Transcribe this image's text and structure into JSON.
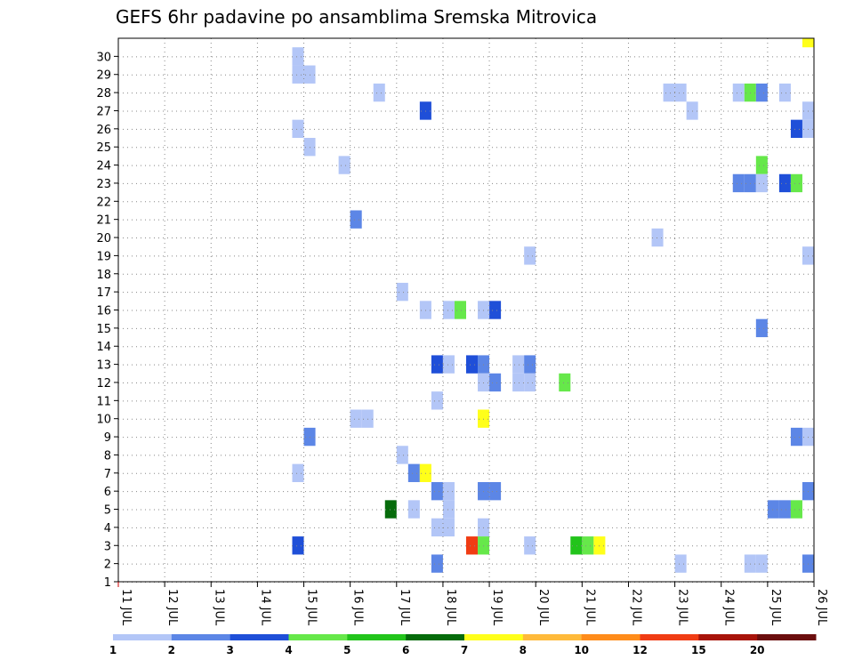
{
  "chart_data": {
    "type": "heatmap",
    "title": "GEFS 6hr padavine po ansamblima Sremska Mitrovica",
    "xlabel": "",
    "ylabel": "",
    "x_ticks": [
      "11 JUL",
      "12 JUL",
      "13 JUL",
      "14 JUL",
      "15 JUL",
      "16 JUL",
      "17 JUL",
      "18 JUL",
      "19 JUL",
      "20 JUL",
      "21 JUL",
      "22 JUL",
      "23 JUL",
      "24 JUL",
      "25 JUL",
      "26 JUL"
    ],
    "xlim": [
      11,
      26
    ],
    "ylim": [
      0,
      30
    ],
    "y_ticks": [
      1,
      2,
      3,
      4,
      5,
      6,
      7,
      8,
      9,
      10,
      11,
      12,
      13,
      14,
      15,
      16,
      17,
      18,
      19,
      20,
      21,
      22,
      23,
      24,
      25,
      26,
      27,
      28,
      29,
      30
    ],
    "grid": true,
    "legend_placement": "bottom",
    "colorbar": {
      "labels": [
        "1",
        "2",
        "3",
        "4",
        "5",
        "6",
        "7",
        "8",
        "10",
        "12",
        "15",
        "20"
      ],
      "colors": [
        "#b3c6f7",
        "#5c86e6",
        "#1f4fd8",
        "#66e84a",
        "#22c41b",
        "#066b0b",
        "#ffff1a",
        "#ffba3a",
        "#ff8c1a",
        "#f03c14",
        "#a8140a",
        "#6b0e0e"
      ]
    },
    "cell_width_days": 0.25,
    "cells": [
      {
        "x": 14.875,
        "y": 30,
        "c": 0
      },
      {
        "x": 14.875,
        "y": 29,
        "c": 0
      },
      {
        "x": 15.125,
        "y": 29,
        "c": 0
      },
      {
        "x": 16.625,
        "y": 28,
        "c": 0
      },
      {
        "x": 22.875,
        "y": 28,
        "c": 0
      },
      {
        "x": 23.125,
        "y": 28,
        "c": 0
      },
      {
        "x": 24.375,
        "y": 28,
        "c": 0
      },
      {
        "x": 24.625,
        "y": 28,
        "c": 3
      },
      {
        "x": 24.875,
        "y": 28,
        "c": 1
      },
      {
        "x": 25.375,
        "y": 28,
        "c": 0
      },
      {
        "x": 17.625,
        "y": 27,
        "c": 2
      },
      {
        "x": 23.375,
        "y": 27,
        "c": 0
      },
      {
        "x": 25.875,
        "y": 27,
        "c": 0
      },
      {
        "x": 14.875,
        "y": 26,
        "c": 0
      },
      {
        "x": 25.625,
        "y": 26,
        "c": 2
      },
      {
        "x": 25.875,
        "y": 26,
        "c": 0
      },
      {
        "x": 15.125,
        "y": 25,
        "c": 0
      },
      {
        "x": 15.875,
        "y": 24,
        "c": 0
      },
      {
        "x": 24.875,
        "y": 24,
        "c": 3
      },
      {
        "x": 24.375,
        "y": 23,
        "c": 1
      },
      {
        "x": 24.625,
        "y": 23,
        "c": 1
      },
      {
        "x": 24.875,
        "y": 23,
        "c": 0
      },
      {
        "x": 25.375,
        "y": 23,
        "c": 2
      },
      {
        "x": 25.625,
        "y": 23,
        "c": 3
      },
      {
        "x": 16.125,
        "y": 21,
        "c": 1
      },
      {
        "x": 22.625,
        "y": 20,
        "c": 0
      },
      {
        "x": 19.875,
        "y": 19,
        "c": 0
      },
      {
        "x": 25.875,
        "y": 19,
        "c": 0
      },
      {
        "x": 17.125,
        "y": 17,
        "c": 0
      },
      {
        "x": 17.625,
        "y": 16,
        "c": 0
      },
      {
        "x": 18.125,
        "y": 16,
        "c": 0
      },
      {
        "x": 18.375,
        "y": 16,
        "c": 3
      },
      {
        "x": 18.875,
        "y": 16,
        "c": 0
      },
      {
        "x": 19.125,
        "y": 16,
        "c": 2
      },
      {
        "x": 24.875,
        "y": 15,
        "c": 1
      },
      {
        "x": 17.875,
        "y": 13,
        "c": 2
      },
      {
        "x": 18.125,
        "y": 13,
        "c": 0
      },
      {
        "x": 18.625,
        "y": 13,
        "c": 2
      },
      {
        "x": 18.875,
        "y": 13,
        "c": 1
      },
      {
        "x": 19.625,
        "y": 13,
        "c": 0
      },
      {
        "x": 19.875,
        "y": 13,
        "c": 1
      },
      {
        "x": 18.875,
        "y": 12,
        "c": 0
      },
      {
        "x": 19.125,
        "y": 12,
        "c": 1
      },
      {
        "x": 19.625,
        "y": 12,
        "c": 0
      },
      {
        "x": 19.875,
        "y": 12,
        "c": 0
      },
      {
        "x": 20.625,
        "y": 12,
        "c": 3
      },
      {
        "x": 17.875,
        "y": 11,
        "c": 0
      },
      {
        "x": 16.125,
        "y": 10,
        "c": 0
      },
      {
        "x": 16.375,
        "y": 10,
        "c": 0
      },
      {
        "x": 18.875,
        "y": 10,
        "c": 6
      },
      {
        "x": 15.125,
        "y": 9,
        "c": 1
      },
      {
        "x": 25.625,
        "y": 9,
        "c": 1
      },
      {
        "x": 25.875,
        "y": 9,
        "c": 0
      },
      {
        "x": 17.125,
        "y": 8,
        "c": 0
      },
      {
        "x": 14.875,
        "y": 7,
        "c": 0
      },
      {
        "x": 17.375,
        "y": 7,
        "c": 1
      },
      {
        "x": 17.625,
        "y": 7,
        "c": 6
      },
      {
        "x": 17.875,
        "y": 6,
        "c": 1
      },
      {
        "x": 18.125,
        "y": 6,
        "c": 0
      },
      {
        "x": 18.875,
        "y": 6,
        "c": 1
      },
      {
        "x": 19.125,
        "y": 6,
        "c": 1
      },
      {
        "x": 25.875,
        "y": 6,
        "c": 1
      },
      {
        "x": 16.875,
        "y": 5,
        "c": 5
      },
      {
        "x": 17.375,
        "y": 5,
        "c": 0
      },
      {
        "x": 18.125,
        "y": 5,
        "c": 0
      },
      {
        "x": 25.125,
        "y": 5,
        "c": 1
      },
      {
        "x": 25.375,
        "y": 5,
        "c": 1
      },
      {
        "x": 25.625,
        "y": 5,
        "c": 3
      },
      {
        "x": 17.875,
        "y": 4,
        "c": 0
      },
      {
        "x": 18.125,
        "y": 4,
        "c": 0
      },
      {
        "x": 18.875,
        "y": 4,
        "c": 0
      },
      {
        "x": 14.875,
        "y": 3,
        "c": 2
      },
      {
        "x": 18.625,
        "y": 3,
        "c": 9
      },
      {
        "x": 18.875,
        "y": 3,
        "c": 3
      },
      {
        "x": 19.875,
        "y": 3,
        "c": 0
      },
      {
        "x": 20.875,
        "y": 3,
        "c": 4
      },
      {
        "x": 21.125,
        "y": 3,
        "c": 3
      },
      {
        "x": 21.375,
        "y": 3,
        "c": 6
      },
      {
        "x": 17.875,
        "y": 2,
        "c": 1
      },
      {
        "x": 23.125,
        "y": 2,
        "c": 0
      },
      {
        "x": 24.625,
        "y": 2,
        "c": 0
      },
      {
        "x": 24.875,
        "y": 2,
        "c": 0
      },
      {
        "x": 25.875,
        "y": 2,
        "c": 1
      },
      {
        "x": 25.875,
        "y": 31,
        "c": 6
      }
    ]
  }
}
